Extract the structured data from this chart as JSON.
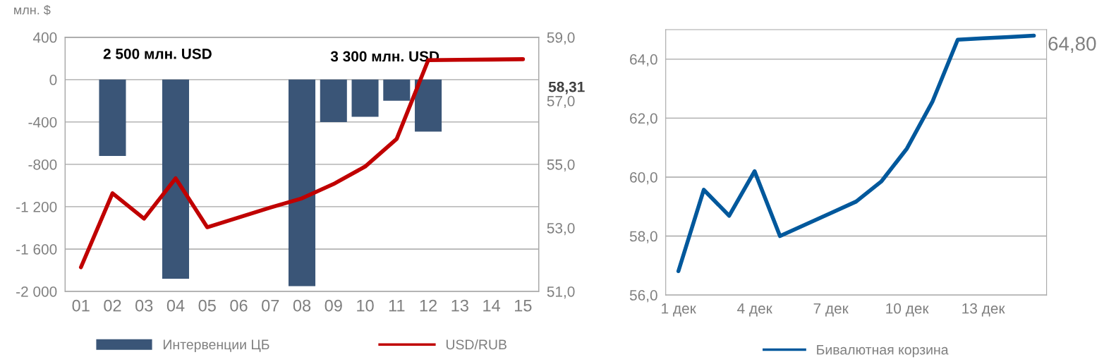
{
  "chart_data": [
    {
      "type": "bar",
      "ylabel": "млн. $",
      "categories": [
        "01",
        "02",
        "03",
        "04",
        "05",
        "06",
        "07",
        "08",
        "09",
        "10",
        "11",
        "12",
        "13",
        "14",
        "15"
      ],
      "series": [
        {
          "name": "Интервенции ЦБ",
          "type": "bar",
          "color": "#3a5577",
          "values": [
            null,
            -720,
            null,
            -1880,
            null,
            null,
            null,
            -1950,
            -400,
            -350,
            -200,
            -490,
            null,
            null,
            null
          ]
        },
        {
          "name": "USD/RUB",
          "type": "line",
          "axis": "y2",
          "color": "#c00000",
          "values": [
            51.76,
            54.09,
            53.29,
            54.56,
            53.02,
            53.33,
            53.64,
            53.93,
            54.38,
            54.93,
            55.8,
            58.28,
            58.29,
            58.3,
            58.31
          ]
        }
      ],
      "ylim": [
        -2000,
        400
      ],
      "yticks": [
        {
          "value": -2000,
          "label": "-2 000"
        },
        {
          "value": -1600,
          "label": "-1 600"
        },
        {
          "value": -1200,
          "label": "-1 200"
        },
        -800,
        -400,
        0,
        400
      ],
      "y2lim": [
        51,
        59
      ],
      "y2ticks": [
        {
          "value": 51,
          "label": "51,0"
        },
        {
          "value": 53,
          "label": "53,0"
        },
        {
          "value": 55,
          "label": "55,0"
        },
        {
          "value": 57,
          "label": "57,0"
        },
        {
          "value": 59,
          "label": "59,0"
        }
      ],
      "annotations": [
        "2 500 млн. USD",
        "3 300 млн. USD",
        "58,31"
      ],
      "grid": "y",
      "legend": "bottom"
    },
    {
      "type": "line",
      "x": [
        1,
        2,
        3,
        4,
        5,
        6,
        7,
        8,
        9,
        10,
        11,
        12,
        13,
        14,
        15
      ],
      "series": [
        {
          "name": "Бивалютная корзина",
          "color": "#00589c",
          "values": [
            56.81,
            59.57,
            58.69,
            60.2,
            58.0,
            58.39,
            58.78,
            59.17,
            59.86,
            60.97,
            62.55,
            64.66,
            64.71,
            64.75,
            64.8
          ]
        }
      ],
      "xlim": [
        0.5,
        15.5
      ],
      "xticks": [
        {
          "value": 1,
          "label": "1 дек"
        },
        {
          "value": 4,
          "label": "4 дек"
        },
        {
          "value": 7,
          "label": "7 дек"
        },
        {
          "value": 10,
          "label": "10 дек"
        },
        {
          "value": 13,
          "label": "13 дек"
        }
      ],
      "ylim": [
        56,
        65
      ],
      "yticks": [
        {
          "value": 56,
          "label": "56,0"
        },
        {
          "value": 58,
          "label": "58,0"
        },
        {
          "value": 60,
          "label": "60,0"
        },
        {
          "value": 62,
          "label": "62,0"
        },
        {
          "value": 64,
          "label": "64,0"
        }
      ],
      "annotations": [
        {
          "text": "64,80",
          "x": 15,
          "y": 64.8
        }
      ],
      "grid": "y",
      "legend": "bottom"
    }
  ]
}
